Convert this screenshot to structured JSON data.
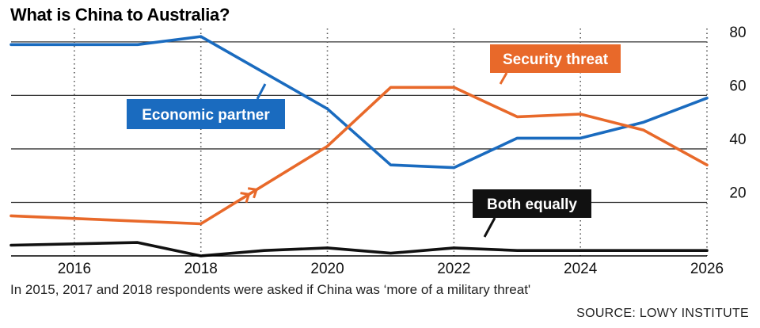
{
  "chart_data": {
    "type": "line",
    "title": "What is China to Australia?",
    "xlabel": "",
    "ylabel": "",
    "xlim": [
      2015,
      2026
    ],
    "ylim": [
      0,
      85
    ],
    "x_ticks": [
      2016,
      2018,
      2020,
      2022,
      2024,
      2026
    ],
    "y_ticks": [
      20,
      40,
      60,
      80
    ],
    "grid": true,
    "series": [
      {
        "name": "Economic partner",
        "color": "#1a6bbf",
        "x": [
          2015,
          2017,
          2018,
          2020,
          2021,
          2022,
          2023,
          2024,
          2025,
          2026
        ],
        "values": [
          79,
          79,
          82,
          55,
          34,
          33,
          44,
          44,
          50,
          59
        ]
      },
      {
        "name": "Security threat",
        "color": "#e8692a",
        "x": [
          2015,
          2018,
          2020,
          2021,
          2022,
          2023,
          2024,
          2025,
          2026
        ],
        "values": [
          15,
          12,
          41,
          63,
          63,
          52,
          53,
          47,
          34
        ]
      },
      {
        "name": "Both equally",
        "color": "#111111",
        "x": [
          2015,
          2017,
          2018,
          2019,
          2020,
          2021,
          2022,
          2023,
          2024,
          2025,
          2026
        ],
        "values": [
          4,
          5,
          0,
          2,
          3,
          1,
          3,
          2,
          2,
          2,
          2
        ]
      }
    ],
    "footnote": "In 2015, 2017 and 2018 respondents were asked if China was ‘more of a military threat'",
    "source": "SOURCE: LOWY INSTITUTE"
  }
}
